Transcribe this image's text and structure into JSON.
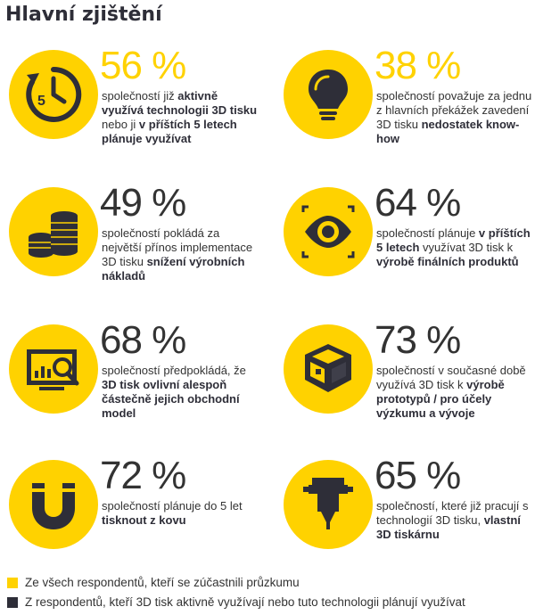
{
  "title": "Hlavní zjištění",
  "colors": {
    "yellow": "#ffd200",
    "dark": "#2e2e38"
  },
  "stats": [
    {
      "percent": "56 %",
      "icon": "clock-icon",
      "group": "all",
      "parts": [
        [
          "t",
          "společností již "
        ],
        [
          "b",
          "aktivně využívá technologii 3D tisku"
        ],
        [
          "t",
          " nebo ji "
        ],
        [
          "b",
          "v příštích 5 letech plánuje využívat"
        ]
      ]
    },
    {
      "percent": "38 %",
      "icon": "lightbulb-icon",
      "group": "all",
      "parts": [
        [
          "t",
          "společností považuje za jednu z hlavních překážek zavedení 3D tisku "
        ],
        [
          "b",
          "nedostatek know-how"
        ]
      ]
    },
    {
      "percent": "49 %",
      "icon": "coins-icon",
      "group": "users",
      "parts": [
        [
          "t",
          "společností pokládá za největší přínos implementace 3D tisku "
        ],
        [
          "b",
          "snížení výrobních nákladů"
        ]
      ]
    },
    {
      "percent": "64 %",
      "icon": "eye-icon",
      "group": "users",
      "parts": [
        [
          "t",
          "společností plánuje "
        ],
        [
          "b",
          "v příštích 5 letech"
        ],
        [
          "t",
          " využívat 3D tisk k "
        ],
        [
          "b",
          "výrobě finálních produktů"
        ]
      ]
    },
    {
      "percent": "68 %",
      "icon": "monitor-chart-icon",
      "group": "users",
      "parts": [
        [
          "t",
          "společností předpokládá, že "
        ],
        [
          "b",
          "3D tisk ovlivní alespoň částečně jejich obchodní model"
        ]
      ]
    },
    {
      "percent": "73 %",
      "icon": "3d-box-icon",
      "group": "users",
      "parts": [
        [
          "t",
          "společností v současné době využívá 3D tisk k "
        ],
        [
          "b",
          "výrobě prototypů / pro účely výzkumu a vývoje"
        ]
      ]
    },
    {
      "percent": "72 %",
      "icon": "magnet-icon",
      "group": "users",
      "parts": [
        [
          "t",
          "společností plánuje do 5 let "
        ],
        [
          "b",
          "tisknout z kovu"
        ]
      ]
    },
    {
      "percent": "65 %",
      "icon": "printer-nozzle-icon",
      "group": "users",
      "parts": [
        [
          "t",
          "společností, které již pracují s technologií 3D tisku, "
        ],
        [
          "b",
          "vlastní 3D tiskárnu"
        ]
      ]
    }
  ],
  "legend": [
    {
      "color": "#ffd200",
      "label": "Ze všech respondentů, kteří se zúčastnili průzkumu"
    },
    {
      "color": "#2e2e38",
      "label": "Z respondentů, kteří 3D tisk aktivně využívají nebo tuto technologii plánují využívat"
    }
  ]
}
